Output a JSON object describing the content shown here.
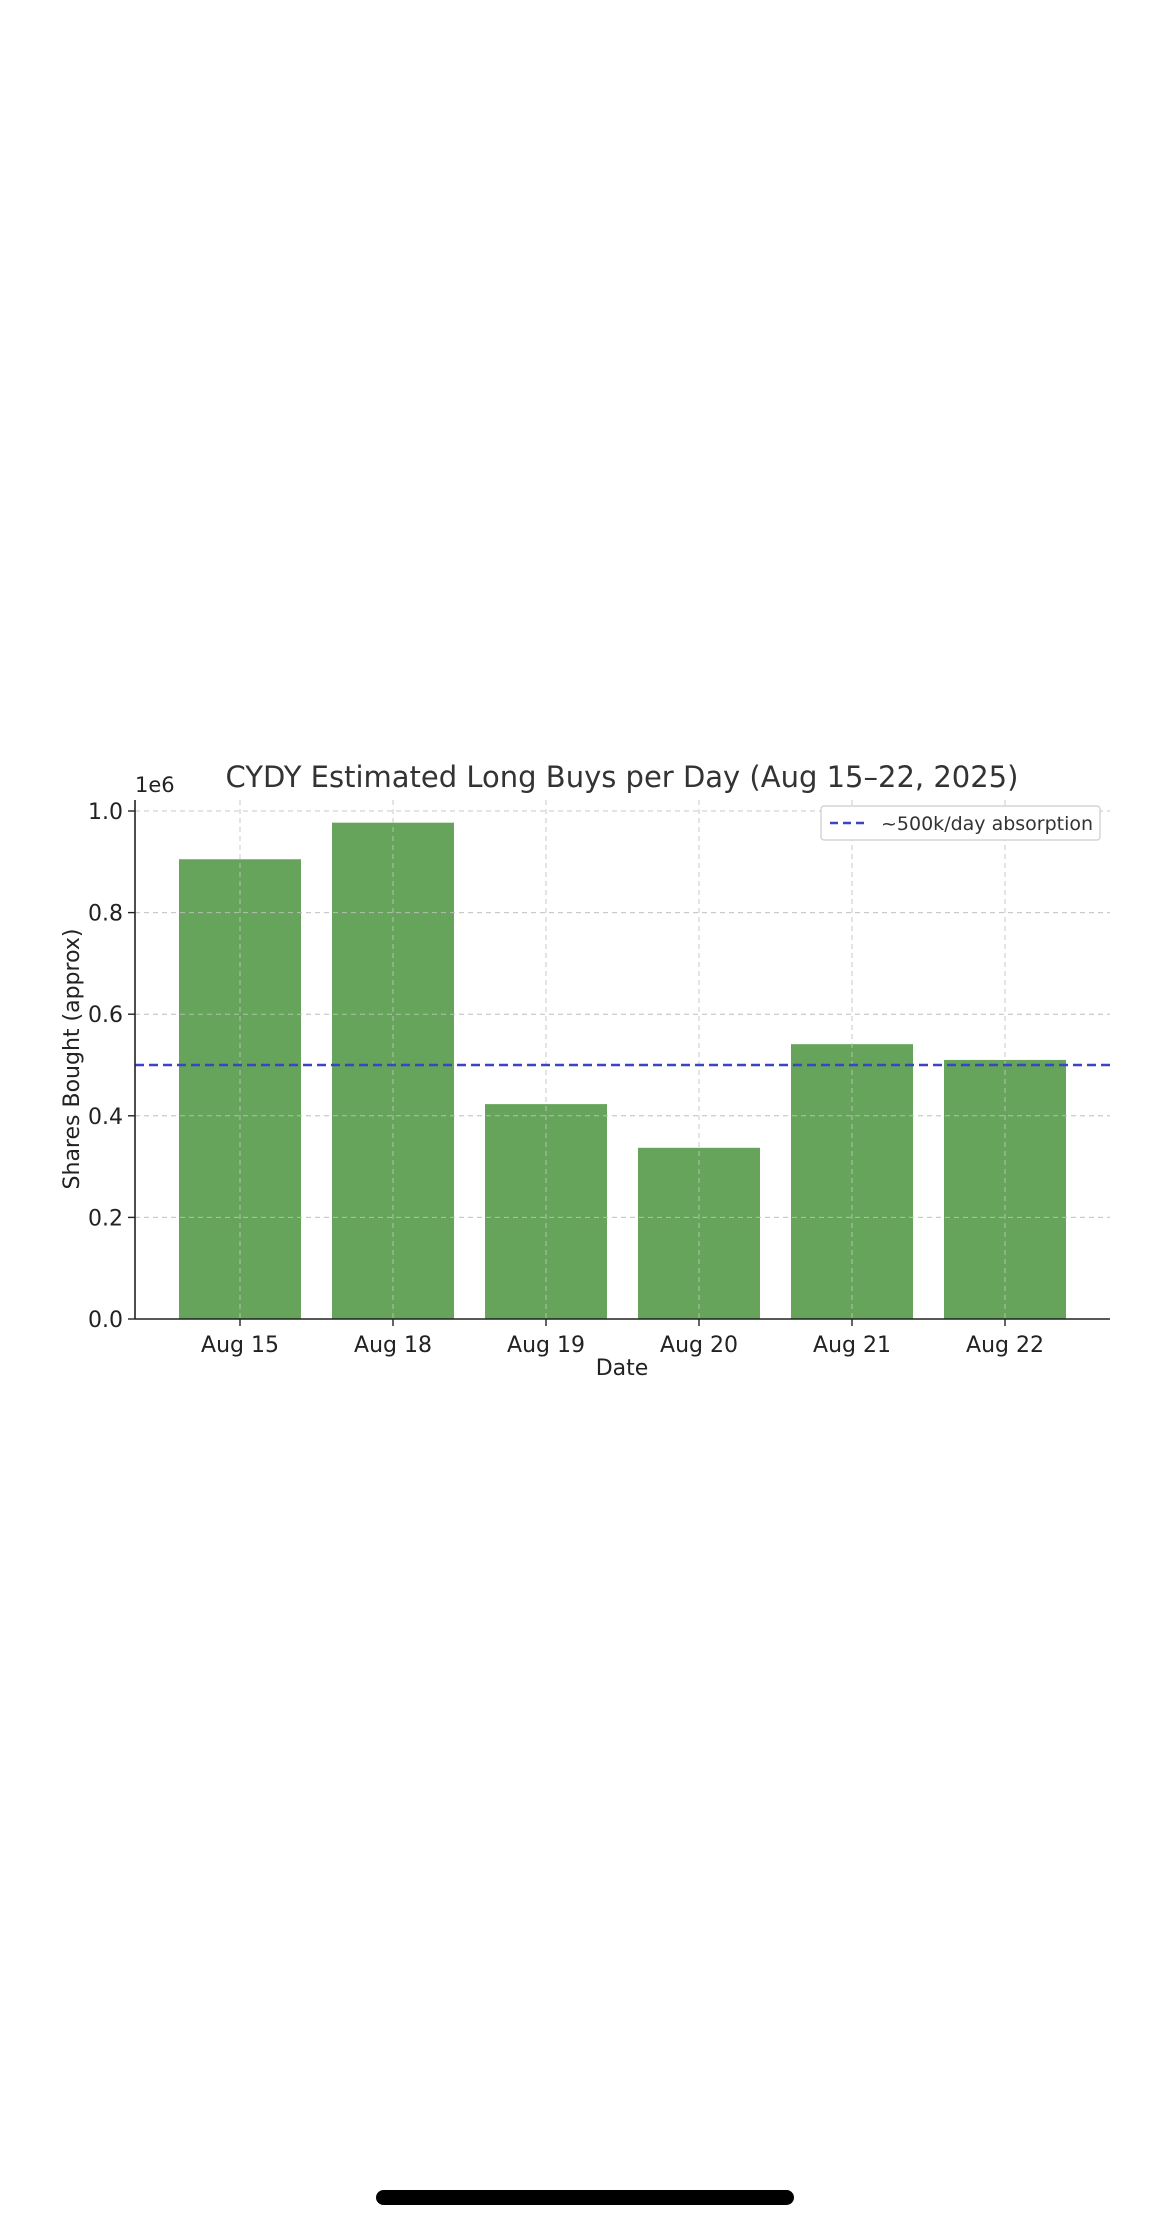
{
  "chart_data": {
    "type": "bar",
    "title": "CYDY Estimated Long Buys per Day (Aug 15–22, 2025)",
    "xlabel": "Date",
    "ylabel": "Shares Bought (approx)",
    "y_offset_text": "1e6",
    "categories": [
      "Aug 15",
      "Aug 18",
      "Aug 19",
      "Aug 20",
      "Aug 21",
      "Aug 22"
    ],
    "values": [
      905000,
      977000,
      423000,
      337000,
      541000,
      510000
    ],
    "ylim": [
      0,
      1000000
    ],
    "yticks": [
      0,
      200000,
      400000,
      600000,
      800000,
      1000000
    ],
    "ytick_labels": [
      "0.0",
      "0.2",
      "0.4",
      "0.6",
      "0.8",
      "1.0"
    ],
    "grid": true,
    "reference_line": {
      "value": 500000,
      "label": "~500k/day absorption",
      "style": "dashed",
      "color": "#3a44c6"
    },
    "legend_position": "top-right",
    "bar_color": "#65a45a"
  }
}
